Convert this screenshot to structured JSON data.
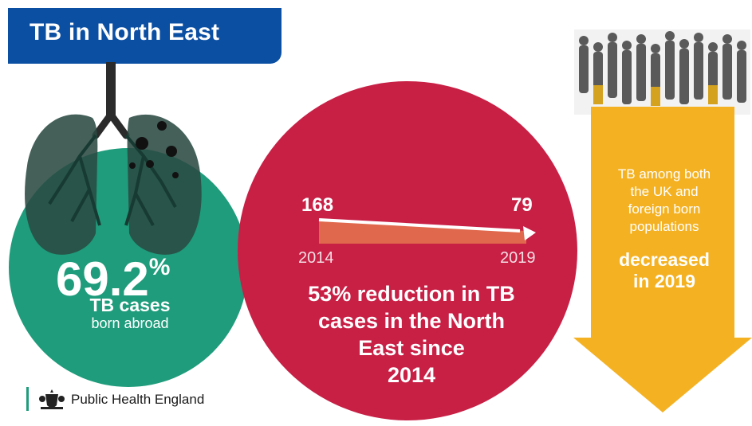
{
  "header": {
    "title": "TB in North East"
  },
  "born_abroad": {
    "percent": "69.2",
    "percent_sign": "%",
    "line1": "TB cases",
    "line2": "born abroad",
    "circle_color": "#1e9c7b"
  },
  "reduction": {
    "start_value": "168",
    "end_value": "79",
    "start_year": "2014",
    "end_year": "2019",
    "headline_lines": [
      "53% reduction in TB",
      "cases in the North",
      "East since",
      "2014"
    ],
    "circle_color": "#c81f45"
  },
  "population": {
    "line1": "TB among both",
    "line2": "the UK and",
    "line3": "foreign born",
    "line4": "populations",
    "emphasis_line1": "decreased",
    "emphasis_line2": "in 2019",
    "arrow_color": "#f4b223"
  },
  "footer": {
    "org_name": "Public Health England",
    "crest_icon": "royal-crest-icon"
  },
  "colors": {
    "title_bg": "#0b4fa3",
    "green": "#1e9c7b",
    "red": "#c81f45",
    "yellow": "#f4b223"
  }
}
